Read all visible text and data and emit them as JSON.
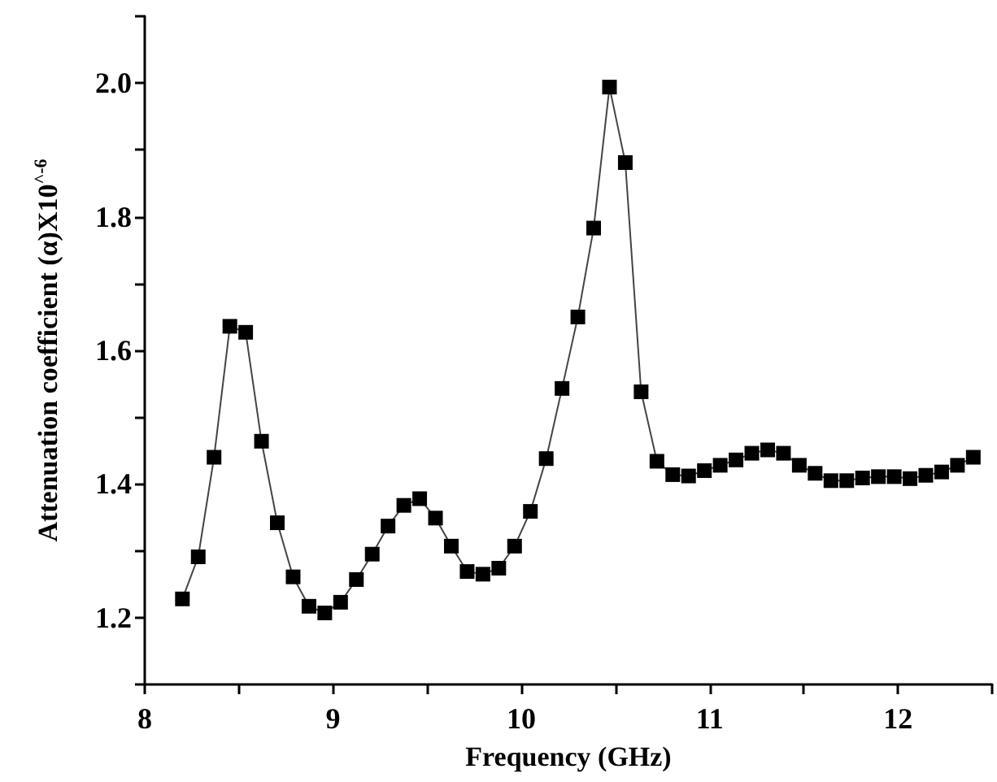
{
  "chart_data": {
    "type": "line",
    "xlabel": "Frequency (GHz)",
    "ylabel": "Attenuation coefficient (α)X10$^{^-6}$",
    "x": [
      8.2,
      8.284,
      8.368,
      8.452,
      8.536,
      8.62,
      8.704,
      8.788,
      8.872,
      8.956,
      9.04,
      9.124,
      9.208,
      9.292,
      9.376,
      9.46,
      9.544,
      9.628,
      9.712,
      9.796,
      9.88,
      9.964,
      10.048,
      10.132,
      10.216,
      10.3,
      10.384,
      10.468,
      10.552,
      10.636,
      10.72,
      10.804,
      10.888,
      10.972,
      11.056,
      11.14,
      11.224,
      11.308,
      11.392,
      11.476,
      11.56,
      11.644,
      11.728,
      11.812,
      11.896,
      11.98,
      12.064,
      12.148,
      12.232,
      12.316,
      12.4
    ],
    "series": [
      {
        "color": "#000000",
        "values": [
          1.228,
          1.291,
          1.44,
          1.636,
          1.627,
          1.464,
          1.342,
          1.261,
          1.217,
          1.207,
          1.223,
          1.257,
          1.295,
          1.337,
          1.368,
          1.378,
          1.349,
          1.307,
          1.269,
          1.265,
          1.274,
          1.307,
          1.359,
          1.438,
          1.543,
          1.65,
          1.783,
          1.994,
          1.881,
          1.538,
          1.434,
          1.414,
          1.412,
          1.42,
          1.428,
          1.436,
          1.446,
          1.451,
          1.446,
          1.428,
          1.416,
          1.405,
          1.405,
          1.409,
          1.411,
          1.411,
          1.408,
          1.413,
          1.418,
          1.428,
          1.44
        ]
      }
    ],
    "xlim": [
      8,
      12.5
    ],
    "xticks": [
      8,
      {
        "value": 8.5,
        "label": null
      },
      9,
      {
        "value": 9.5,
        "label": null
      },
      10,
      {
        "value": 10.5,
        "label": null
      },
      11,
      {
        "value": 11.5,
        "label": null
      },
      12,
      {
        "value": 12.5,
        "label": null
      }
    ],
    "ylim": [
      1.1,
      2.1
    ],
    "yticks": [
      {
        "value": 1.1,
        "label": null
      },
      1.2,
      {
        "value": 1.3,
        "label": null
      },
      1.4,
      {
        "value": 1.5,
        "label": null
      },
      1.6,
      {
        "value": 1.7,
        "label": null
      },
      1.8,
      {
        "value": 1.9,
        "label": null
      },
      {
        "value": 2,
        "label": "2.0"
      },
      {
        "value": 2.1,
        "label": null
      }
    ],
    "marker": "square",
    "line_style": "solid"
  }
}
